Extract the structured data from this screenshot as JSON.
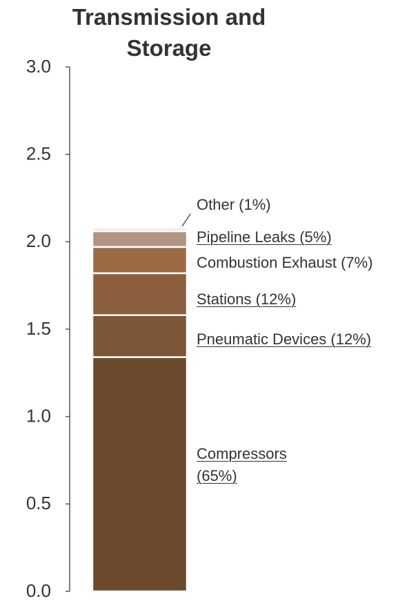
{
  "chart_data": {
    "type": "stacked_bar",
    "title": "Transmission and Storage",
    "series": [
      {
        "name": "Compressors (65%)",
        "color": "#6b4a2e",
        "underline": true,
        "values": [
          1.34
        ]
      },
      {
        "name": "Pneumatic Devices (12%)",
        "color": "#7d5639",
        "underline": true,
        "values": [
          0.24
        ]
      },
      {
        "name": "Stations (12%)",
        "color": "#8c5f3f",
        "underline": true,
        "values": [
          0.24
        ]
      },
      {
        "name": "Combustion Exhaust (7%)",
        "color": "#9b6a44",
        "underline": false,
        "values": [
          0.15
        ]
      },
      {
        "name": "Pipeline Leaks (5%)",
        "color": "#b09382",
        "underline": true,
        "values": [
          0.09
        ]
      },
      {
        "name": "Other (1%)",
        "color": "#efe9e5",
        "underline": false,
        "values": [
          0.02
        ]
      }
    ],
    "ylim": [
      0,
      3
    ],
    "yticks": [
      {
        "value": 0,
        "label": "0.0"
      },
      {
        "value": 0.5,
        "label": "0.5"
      },
      {
        "value": 1,
        "label": "1.0"
      },
      {
        "value": 1.5,
        "label": "1.5"
      },
      {
        "value": 2,
        "label": "2.0"
      },
      {
        "value": 2.5,
        "label": "2.5"
      },
      {
        "value": 3,
        "label": "3.0"
      }
    ]
  }
}
